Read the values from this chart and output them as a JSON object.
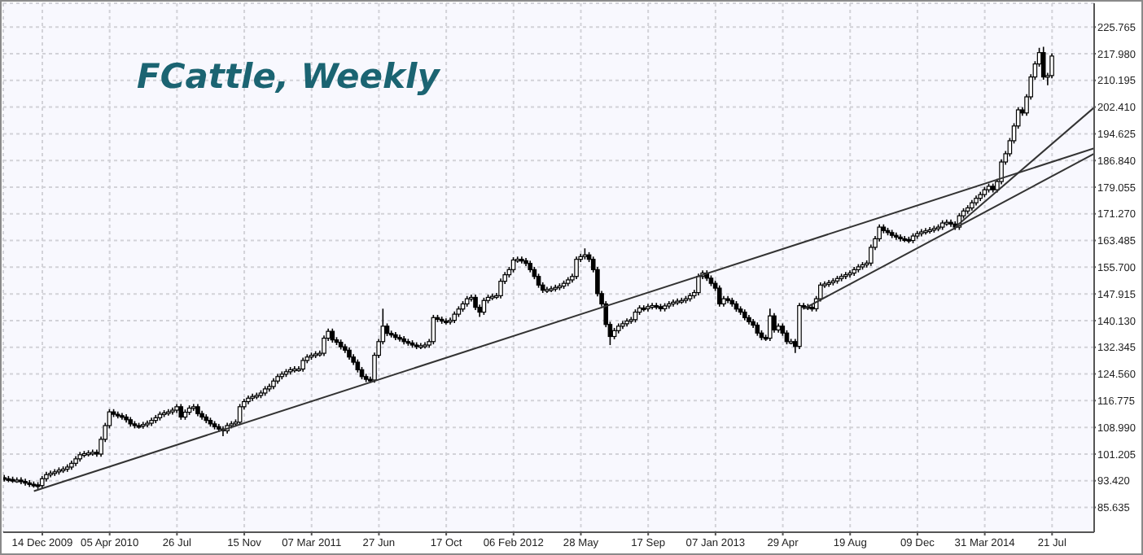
{
  "chart_data": {
    "type": "candlestick",
    "title": "FCattle, Weekly",
    "color": "#000000",
    "grid": true,
    "x": [
      "2009-10-12",
      "2009-10-19",
      "2009-10-26",
      "2009-11-02",
      "2009-11-09",
      "2009-11-16",
      "2009-11-23",
      "2009-11-30",
      "2009-12-07",
      "2009-12-14",
      "2009-12-21",
      "2009-12-28",
      "2010-01-04",
      "2010-01-11",
      "2010-01-18",
      "2010-01-25",
      "2010-02-01",
      "2010-02-08",
      "2010-02-15",
      "2010-02-22",
      "2010-03-01",
      "2010-03-08",
      "2010-03-15",
      "2010-03-22",
      "2010-03-29",
      "2010-04-05",
      "2010-04-12",
      "2010-04-19",
      "2010-04-26",
      "2010-05-03",
      "2010-05-10",
      "2010-05-17",
      "2010-05-24",
      "2010-05-31",
      "2010-06-07",
      "2010-06-14",
      "2010-06-21",
      "2010-06-28",
      "2010-07-05",
      "2010-07-12",
      "2010-07-19",
      "2010-07-26",
      "2010-08-02",
      "2010-08-09",
      "2010-08-16",
      "2010-08-23",
      "2010-08-30",
      "2010-09-06",
      "2010-09-13",
      "2010-09-20",
      "2010-09-27",
      "2010-10-04",
      "2010-10-11",
      "2010-10-18",
      "2010-10-25",
      "2010-11-01",
      "2010-11-08",
      "2010-11-15",
      "2010-11-22",
      "2010-11-29",
      "2010-12-06",
      "2010-12-13",
      "2010-12-20",
      "2010-12-27",
      "2011-01-03",
      "2011-01-10",
      "2011-01-17",
      "2011-01-24",
      "2011-01-31",
      "2011-02-07",
      "2011-02-14",
      "2011-02-21",
      "2011-02-28",
      "2011-03-07",
      "2011-03-14",
      "2011-03-21",
      "2011-03-28",
      "2011-04-04",
      "2011-04-11",
      "2011-04-18",
      "2011-04-25",
      "2011-05-02",
      "2011-05-09",
      "2011-05-16",
      "2011-05-23",
      "2011-05-30",
      "2011-06-06",
      "2011-06-13",
      "2011-06-20",
      "2011-06-27",
      "2011-07-04",
      "2011-07-11",
      "2011-07-18",
      "2011-07-25",
      "2011-08-01",
      "2011-08-08",
      "2011-08-15",
      "2011-08-22",
      "2011-08-29",
      "2011-09-05",
      "2011-09-12",
      "2011-09-19",
      "2011-09-26",
      "2011-10-03",
      "2011-10-10",
      "2011-10-17",
      "2011-10-24",
      "2011-10-31",
      "2011-11-07",
      "2011-11-14",
      "2011-11-21",
      "2011-11-28",
      "2011-12-05",
      "2011-12-12",
      "2011-12-19",
      "2011-12-26",
      "2012-01-02",
      "2012-01-09",
      "2012-01-16",
      "2012-01-23",
      "2012-01-30",
      "2012-02-06",
      "2012-02-13",
      "2012-02-20",
      "2012-02-27",
      "2012-03-05",
      "2012-03-12",
      "2012-03-19",
      "2012-03-26",
      "2012-04-02",
      "2012-04-09",
      "2012-04-16",
      "2012-04-23",
      "2012-04-30",
      "2012-05-07",
      "2012-05-14",
      "2012-05-21",
      "2012-05-28",
      "2012-06-04",
      "2012-06-11",
      "2012-06-18",
      "2012-06-25",
      "2012-07-02",
      "2012-07-09",
      "2012-07-16",
      "2012-07-23",
      "2012-07-30",
      "2012-08-06",
      "2012-08-13",
      "2012-08-20",
      "2012-08-27",
      "2012-09-03",
      "2012-09-10",
      "2012-09-17",
      "2012-09-24",
      "2012-10-01",
      "2012-10-08",
      "2012-10-15",
      "2012-10-22",
      "2012-10-29",
      "2012-11-05",
      "2012-11-12",
      "2012-11-19",
      "2012-11-26",
      "2012-12-03",
      "2012-12-10",
      "2012-12-17",
      "2012-12-24",
      "2012-12-31",
      "2013-01-07",
      "2013-01-14",
      "2013-01-21",
      "2013-01-28",
      "2013-02-04",
      "2013-02-11",
      "2013-02-18",
      "2013-02-25",
      "2013-03-04",
      "2013-03-11",
      "2013-03-18",
      "2013-03-25",
      "2013-04-01",
      "2013-04-08",
      "2013-04-15",
      "2013-04-22",
      "2013-04-29",
      "2013-05-06",
      "2013-05-13",
      "2013-05-20",
      "2013-05-27",
      "2013-06-03",
      "2013-06-10",
      "2013-06-17",
      "2013-06-24",
      "2013-07-01",
      "2013-07-08",
      "2013-07-15",
      "2013-07-22",
      "2013-07-29",
      "2013-08-05",
      "2013-08-12",
      "2013-08-19",
      "2013-08-26",
      "2013-09-02",
      "2013-09-09",
      "2013-09-16",
      "2013-09-23",
      "2013-09-30",
      "2013-10-07",
      "2013-10-14",
      "2013-10-21",
      "2013-10-28",
      "2013-11-04",
      "2013-11-11",
      "2013-11-18",
      "2013-11-25",
      "2013-12-02",
      "2013-12-09",
      "2013-12-16",
      "2013-12-23",
      "2013-12-30",
      "2014-01-06",
      "2014-01-13",
      "2014-01-20",
      "2014-01-27",
      "2014-02-03",
      "2014-02-10",
      "2014-02-17",
      "2014-02-24",
      "2014-03-03",
      "2014-03-10",
      "2014-03-17",
      "2014-03-24",
      "2014-03-31",
      "2014-04-07",
      "2014-04-14",
      "2014-04-21",
      "2014-04-28",
      "2014-05-05",
      "2014-05-12",
      "2014-05-19",
      "2014-05-26",
      "2014-06-02",
      "2014-06-09",
      "2014-06-16",
      "2014-06-23",
      "2014-06-30",
      "2014-07-07",
      "2014-07-14",
      "2014-07-21"
    ],
    "ohlc": [
      [
        94.3,
        95.1,
        93.2,
        94.0
      ],
      [
        94.0,
        94.8,
        93.0,
        93.8
      ],
      [
        93.8,
        94.6,
        92.8,
        93.6
      ],
      [
        93.6,
        94.4,
        92.8,
        93.6
      ],
      [
        93.6,
        94.4,
        92.4,
        93.2
      ],
      [
        93.2,
        94.0,
        92.0,
        92.8
      ],
      [
        92.8,
        93.6,
        91.6,
        92.4
      ],
      [
        92.4,
        93.2,
        91.4,
        92.2
      ],
      [
        92.2,
        93.0,
        91.0,
        92.0
      ],
      [
        92.0,
        94.8,
        91.2,
        94.0
      ],
      [
        94.0,
        96.0,
        93.2,
        95.2
      ],
      [
        95.2,
        96.4,
        94.4,
        95.6
      ],
      [
        95.6,
        96.8,
        94.8,
        96.0
      ],
      [
        96.0,
        97.3,
        95.2,
        96.5
      ],
      [
        96.5,
        97.6,
        95.7,
        96.8
      ],
      [
        96.8,
        98.2,
        96.0,
        97.4
      ],
      [
        97.4,
        99.3,
        96.6,
        98.5
      ],
      [
        98.5,
        100.6,
        97.7,
        99.8
      ],
      [
        99.8,
        101.8,
        99.0,
        101.0
      ],
      [
        101.0,
        102.1,
        100.2,
        101.3
      ],
      [
        101.3,
        102.3,
        100.5,
        101.5
      ],
      [
        101.5,
        102.5,
        100.7,
        101.7
      ],
      [
        101.7,
        102.5,
        100.4,
        101.2
      ],
      [
        101.2,
        106.3,
        100.4,
        105.5
      ],
      [
        105.5,
        110.3,
        104.7,
        109.5
      ],
      [
        109.5,
        114.3,
        108.7,
        113.5
      ],
      [
        113.5,
        114.3,
        112.0,
        112.8
      ],
      [
        112.8,
        113.6,
        111.6,
        112.4
      ],
      [
        112.4,
        113.2,
        111.2,
        112.0
      ],
      [
        112.0,
        112.8,
        110.4,
        111.2
      ],
      [
        111.2,
        112.0,
        109.2,
        110.0
      ],
      [
        110.0,
        110.8,
        108.7,
        109.5
      ],
      [
        109.5,
        110.3,
        108.6,
        109.4
      ],
      [
        109.4,
        110.6,
        108.6,
        109.8
      ],
      [
        109.8,
        111.0,
        109.0,
        110.2
      ],
      [
        110.2,
        111.8,
        109.4,
        111.0
      ],
      [
        111.0,
        112.6,
        110.2,
        111.8
      ],
      [
        111.8,
        113.6,
        111.0,
        112.8
      ],
      [
        112.8,
        114.0,
        112.0,
        113.2
      ],
      [
        113.2,
        114.3,
        112.4,
        113.5
      ],
      [
        113.5,
        114.8,
        112.7,
        114.0
      ],
      [
        114.0,
        115.8,
        113.2,
        115.0
      ],
      [
        115.0,
        115.8,
        111.2,
        112.0
      ],
      [
        112.0,
        114.2,
        111.2,
        113.4
      ],
      [
        113.4,
        115.4,
        112.6,
        114.6
      ],
      [
        114.6,
        115.8,
        113.8,
        115.0
      ],
      [
        115.0,
        115.8,
        112.2,
        113.0
      ],
      [
        113.0,
        113.8,
        111.2,
        112.0
      ],
      [
        112.0,
        112.8,
        110.2,
        111.0
      ],
      [
        111.0,
        111.8,
        109.2,
        110.0
      ],
      [
        110.0,
        110.8,
        108.4,
        109.2
      ],
      [
        109.2,
        110.0,
        107.7,
        108.5
      ],
      [
        108.5,
        109.3,
        106.4,
        108.0
      ],
      [
        108.0,
        110.3,
        107.2,
        109.5
      ],
      [
        109.5,
        110.8,
        108.7,
        110.0
      ],
      [
        110.0,
        111.3,
        109.2,
        110.5
      ],
      [
        110.5,
        115.8,
        109.7,
        115.0
      ],
      [
        115.0,
        117.3,
        114.2,
        116.5
      ],
      [
        116.5,
        118.3,
        115.7,
        117.5
      ],
      [
        117.5,
        118.8,
        116.7,
        118.0
      ],
      [
        118.0,
        119.1,
        117.2,
        118.3
      ],
      [
        118.3,
        119.8,
        117.5,
        119.0
      ],
      [
        119.0,
        121.0,
        118.2,
        120.2
      ],
      [
        120.2,
        121.7,
        119.4,
        120.9
      ],
      [
        120.9,
        123.3,
        120.1,
        122.5
      ],
      [
        122.5,
        124.6,
        121.7,
        123.8
      ],
      [
        123.8,
        125.3,
        123.0,
        124.5
      ],
      [
        124.5,
        126.0,
        123.7,
        125.2
      ],
      [
        125.2,
        126.6,
        124.4,
        125.8
      ],
      [
        125.8,
        126.8,
        125.0,
        126.0
      ],
      [
        126.0,
        126.8,
        125.2,
        126.0
      ],
      [
        126.0,
        129.3,
        125.2,
        128.5
      ],
      [
        128.5,
        130.3,
        127.7,
        129.5
      ],
      [
        129.5,
        130.8,
        128.7,
        130.0
      ],
      [
        130.0,
        131.2,
        129.2,
        130.4
      ],
      [
        130.4,
        131.4,
        129.6,
        130.6
      ],
      [
        130.6,
        135.8,
        129.8,
        135.0
      ],
      [
        135.0,
        137.8,
        134.2,
        137.0
      ],
      [
        137.0,
        137.8,
        133.7,
        134.5
      ],
      [
        134.5,
        135.3,
        133.0,
        133.8
      ],
      [
        133.8,
        134.6,
        131.7,
        132.5
      ],
      [
        132.5,
        133.3,
        130.7,
        131.5
      ],
      [
        131.5,
        132.3,
        128.7,
        129.5
      ],
      [
        129.5,
        130.3,
        127.2,
        128.0
      ],
      [
        128.0,
        128.8,
        125.0,
        125.8
      ],
      [
        125.8,
        126.6,
        123.0,
        123.8
      ],
      [
        123.8,
        124.6,
        122.2,
        123.0
      ],
      [
        123.0,
        123.8,
        122.0,
        122.8
      ],
      [
        122.8,
        130.8,
        122.0,
        130.0
      ],
      [
        130.0,
        134.8,
        129.2,
        134.0
      ],
      [
        134.0,
        143.6,
        133.2,
        138.5
      ],
      [
        138.5,
        139.3,
        135.6,
        136.4
      ],
      [
        136.4,
        137.2,
        135.2,
        136.0
      ],
      [
        136.0,
        136.8,
        134.4,
        135.2
      ],
      [
        135.2,
        136.0,
        134.0,
        134.8
      ],
      [
        134.8,
        135.6,
        133.2,
        134.0
      ],
      [
        134.0,
        134.8,
        132.8,
        133.6
      ],
      [
        133.6,
        134.4,
        132.2,
        133.0
      ],
      [
        133.0,
        133.8,
        131.8,
        132.6
      ],
      [
        132.6,
        133.6,
        131.8,
        132.8
      ],
      [
        132.8,
        133.8,
        132.0,
        133.0
      ],
      [
        133.0,
        134.8,
        132.2,
        134.0
      ],
      [
        134.0,
        141.8,
        133.2,
        141.0
      ],
      [
        141.0,
        141.8,
        139.7,
        140.5
      ],
      [
        140.5,
        141.3,
        139.2,
        140.0
      ],
      [
        140.0,
        140.8,
        139.0,
        139.8
      ],
      [
        139.8,
        141.0,
        139.0,
        140.2
      ],
      [
        140.2,
        142.8,
        139.4,
        142.0
      ],
      [
        142.0,
        144.3,
        141.2,
        143.5
      ],
      [
        143.5,
        145.8,
        142.7,
        145.0
      ],
      [
        145.0,
        147.3,
        144.2,
        146.5
      ],
      [
        146.5,
        147.7,
        145.7,
        146.9
      ],
      [
        146.9,
        147.7,
        143.2,
        144.0
      ],
      [
        144.0,
        144.8,
        141.2,
        142.6
      ],
      [
        142.6,
        146.8,
        141.8,
        146.0
      ],
      [
        146.0,
        147.7,
        145.2,
        146.9
      ],
      [
        146.9,
        148.0,
        146.1,
        147.2
      ],
      [
        147.2,
        148.2,
        146.4,
        147.4
      ],
      [
        147.4,
        152.4,
        146.6,
        151.6
      ],
      [
        151.6,
        154.3,
        150.8,
        153.5
      ],
      [
        153.5,
        155.8,
        152.7,
        155.0
      ],
      [
        155.0,
        158.6,
        154.2,
        157.8
      ],
      [
        157.8,
        158.8,
        157.0,
        158.0
      ],
      [
        158.0,
        158.8,
        156.8,
        157.6
      ],
      [
        157.6,
        158.4,
        156.0,
        156.8
      ],
      [
        156.8,
        157.6,
        154.2,
        155.0
      ],
      [
        155.0,
        155.8,
        152.2,
        153.0
      ],
      [
        153.0,
        153.8,
        149.7,
        150.5
      ],
      [
        150.5,
        151.3,
        148.2,
        149.0
      ],
      [
        149.0,
        150.0,
        148.2,
        149.2
      ],
      [
        149.2,
        150.2,
        148.4,
        149.4
      ],
      [
        149.4,
        150.6,
        148.6,
        149.8
      ],
      [
        149.8,
        151.0,
        149.0,
        150.2
      ],
      [
        150.2,
        151.8,
        149.4,
        151.0
      ],
      [
        151.0,
        152.8,
        150.2,
        152.0
      ],
      [
        152.0,
        153.8,
        151.2,
        153.0
      ],
      [
        153.0,
        158.8,
        152.2,
        158.0
      ],
      [
        158.0,
        159.6,
        157.2,
        158.8
      ],
      [
        158.8,
        161.2,
        158.0,
        159.3
      ],
      [
        159.3,
        160.1,
        157.2,
        158.0
      ],
      [
        158.0,
        158.8,
        154.2,
        155.0
      ],
      [
        155.0,
        155.8,
        147.2,
        148.0
      ],
      [
        148.0,
        148.8,
        144.2,
        145.0
      ],
      [
        145.0,
        145.8,
        138.2,
        139.0
      ],
      [
        139.0,
        139.8,
        133.0,
        135.5
      ],
      [
        135.5,
        138.0,
        134.7,
        137.2
      ],
      [
        137.2,
        139.3,
        136.4,
        138.5
      ],
      [
        138.5,
        140.0,
        137.7,
        139.2
      ],
      [
        139.2,
        140.8,
        138.4,
        140.0
      ],
      [
        140.0,
        141.2,
        139.2,
        140.4
      ],
      [
        140.4,
        143.4,
        139.6,
        142.6
      ],
      [
        142.6,
        144.6,
        141.8,
        143.8
      ],
      [
        143.8,
        144.6,
        142.8,
        143.6
      ],
      [
        143.6,
        145.0,
        142.8,
        144.2
      ],
      [
        144.2,
        145.3,
        143.4,
        144.5
      ],
      [
        144.5,
        145.3,
        143.4,
        144.2
      ],
      [
        144.2,
        145.0,
        142.8,
        143.6
      ],
      [
        143.6,
        145.2,
        142.8,
        144.4
      ],
      [
        144.4,
        145.8,
        143.6,
        145.0
      ],
      [
        145.0,
        146.3,
        144.2,
        145.5
      ],
      [
        145.5,
        146.6,
        144.7,
        145.8
      ],
      [
        145.8,
        146.8,
        145.0,
        146.0
      ],
      [
        146.0,
        147.3,
        145.2,
        146.5
      ],
      [
        146.5,
        148.2,
        145.7,
        147.4
      ],
      [
        147.4,
        149.1,
        146.6,
        148.3
      ],
      [
        148.3,
        153.8,
        147.5,
        153.0
      ],
      [
        153.0,
        154.8,
        152.2,
        154.0
      ],
      [
        154.0,
        154.8,
        151.7,
        152.5
      ],
      [
        152.5,
        153.3,
        150.2,
        151.0
      ],
      [
        151.0,
        151.8,
        148.8,
        149.6
      ],
      [
        149.6,
        150.4,
        144.2,
        145.0
      ],
      [
        145.0,
        147.3,
        144.2,
        146.5
      ],
      [
        146.5,
        147.3,
        145.2,
        146.0
      ],
      [
        146.0,
        146.8,
        144.2,
        145.0
      ],
      [
        145.0,
        145.8,
        142.7,
        143.5
      ],
      [
        143.5,
        144.3,
        141.8,
        142.6
      ],
      [
        142.6,
        143.4,
        140.2,
        141.0
      ],
      [
        141.0,
        141.8,
        139.0,
        139.8
      ],
      [
        139.8,
        140.6,
        138.0,
        138.8
      ],
      [
        138.8,
        139.6,
        135.7,
        136.5
      ],
      [
        136.5,
        137.3,
        134.4,
        135.2
      ],
      [
        135.2,
        136.0,
        134.2,
        135.0
      ],
      [
        135.0,
        143.6,
        134.2,
        141.5
      ],
      [
        141.5,
        142.3,
        136.6,
        137.4
      ],
      [
        137.4,
        139.3,
        136.6,
        138.5
      ],
      [
        138.5,
        139.3,
        135.7,
        136.5
      ],
      [
        136.5,
        137.3,
        133.2,
        134.0
      ],
      [
        134.0,
        134.8,
        133.2,
        134.0
      ],
      [
        134.0,
        134.8,
        130.7,
        132.6
      ],
      [
        132.6,
        145.3,
        131.8,
        144.5
      ],
      [
        144.5,
        145.3,
        143.4,
        144.2
      ],
      [
        144.2,
        145.0,
        143.2,
        144.0
      ],
      [
        144.0,
        144.8,
        142.8,
        143.6
      ],
      [
        143.6,
        147.3,
        142.8,
        146.5
      ],
      [
        146.5,
        151.3,
        145.7,
        150.5
      ],
      [
        150.5,
        151.6,
        149.7,
        150.8
      ],
      [
        150.8,
        152.0,
        150.0,
        151.2
      ],
      [
        151.2,
        152.5,
        150.4,
        151.7
      ],
      [
        151.7,
        153.2,
        150.9,
        152.4
      ],
      [
        152.4,
        153.8,
        151.6,
        153.0
      ],
      [
        153.0,
        154.3,
        152.2,
        153.5
      ],
      [
        153.5,
        154.8,
        152.7,
        154.0
      ],
      [
        154.0,
        155.8,
        153.2,
        155.0
      ],
      [
        155.0,
        156.6,
        154.2,
        155.8
      ],
      [
        155.8,
        157.2,
        155.0,
        156.4
      ],
      [
        156.4,
        157.7,
        155.6,
        156.9
      ],
      [
        156.9,
        162.3,
        156.1,
        161.5
      ],
      [
        161.5,
        164.8,
        160.7,
        164.0
      ],
      [
        164.0,
        168.2,
        163.2,
        167.4
      ],
      [
        167.4,
        168.2,
        165.6,
        166.4
      ],
      [
        166.4,
        167.2,
        165.0,
        165.8
      ],
      [
        165.8,
        166.6,
        164.2,
        165.0
      ],
      [
        165.0,
        165.8,
        163.7,
        164.5
      ],
      [
        164.5,
        165.3,
        163.2,
        164.0
      ],
      [
        164.0,
        164.8,
        163.0,
        163.8
      ],
      [
        163.8,
        164.6,
        162.7,
        163.5
      ],
      [
        163.5,
        165.6,
        162.7,
        164.8
      ],
      [
        164.8,
        166.3,
        164.0,
        165.5
      ],
      [
        165.5,
        166.8,
        164.7,
        166.0
      ],
      [
        166.0,
        167.1,
        165.2,
        166.3
      ],
      [
        166.3,
        167.4,
        165.5,
        166.6
      ],
      [
        166.6,
        167.8,
        165.8,
        167.0
      ],
      [
        167.0,
        168.2,
        166.2,
        167.4
      ],
      [
        167.4,
        169.4,
        166.6,
        168.6
      ],
      [
        168.6,
        169.6,
        167.8,
        168.8
      ],
      [
        168.8,
        169.6,
        167.5,
        168.3
      ],
      [
        168.3,
        169.1,
        166.6,
        167.4
      ],
      [
        167.4,
        171.5,
        166.6,
        170.7
      ],
      [
        170.7,
        172.9,
        169.9,
        172.1
      ],
      [
        172.1,
        173.8,
        171.3,
        173.0
      ],
      [
        173.0,
        175.3,
        172.2,
        174.5
      ],
      [
        174.5,
        176.6,
        173.7,
        175.8
      ],
      [
        175.8,
        177.7,
        175.0,
        176.9
      ],
      [
        176.9,
        179.1,
        176.1,
        178.3
      ],
      [
        178.3,
        180.1,
        177.5,
        179.3
      ],
      [
        179.3,
        180.1,
        177.5,
        178.3
      ],
      [
        178.3,
        181.5,
        177.5,
        180.7
      ],
      [
        180.7,
        187.2,
        179.9,
        186.4
      ],
      [
        186.4,
        189.6,
        185.6,
        188.8
      ],
      [
        188.8,
        193.4,
        188.0,
        192.6
      ],
      [
        192.6,
        197.7,
        191.8,
        196.9
      ],
      [
        196.9,
        202.4,
        196.1,
        201.6
      ],
      [
        201.6,
        202.4,
        199.9,
        200.7
      ],
      [
        200.7,
        206.2,
        199.9,
        205.4
      ],
      [
        205.4,
        212.0,
        204.6,
        211.2
      ],
      [
        211.2,
        215.8,
        210.4,
        215.0
      ],
      [
        215.0,
        219.7,
        214.2,
        218.3
      ],
      [
        218.3,
        220.0,
        210.4,
        211.2
      ],
      [
        211.2,
        212.4,
        208.8,
        211.6
      ],
      [
        211.6,
        218.1,
        210.8,
        217.3
      ]
    ],
    "series": [
      {
        "type": "line",
        "color": "#333333",
        "x": [
          "2009-11-30",
          "2014-09-29"
        ],
        "values": [
          90.4,
          190.4
        ]
      },
      {
        "type": "line",
        "color": "#333333",
        "x": [
          "2013-06-03",
          "2014-09-29"
        ],
        "values": [
          143.6,
          188.8
        ]
      },
      {
        "type": "line",
        "color": "#333333",
        "x": [
          "2014-02-10",
          "2014-09-29"
        ],
        "values": [
          167.4,
          202.3
        ]
      }
    ],
    "xlim": [
      "2009-10-10",
      "2014-09-29"
    ],
    "xticks": [
      {
        "value": "2009-12-14",
        "label": "14 Dec 2009"
      },
      {
        "value": "2010-04-05",
        "label": "05 Apr 2010"
      },
      {
        "value": "2010-07-26",
        "label": "26 Jul"
      },
      {
        "value": "2010-11-15",
        "label": "15 Nov"
      },
      {
        "value": "2011-03-07",
        "label": "07 Mar 2011"
      },
      {
        "value": "2011-06-27",
        "label": "27 Jun"
      },
      {
        "value": "2011-10-17",
        "label": "17 Oct"
      },
      {
        "value": "2012-02-06",
        "label": "06 Feb 2012"
      },
      {
        "value": "2012-05-28",
        "label": "28 May"
      },
      {
        "value": "2012-09-17",
        "label": "17 Sep"
      },
      {
        "value": "2013-01-07",
        "label": "07 Jan 2013"
      },
      {
        "value": "2013-04-29",
        "label": "29 Apr"
      },
      {
        "value": "2013-08-19",
        "label": "19 Aug"
      },
      {
        "value": "2013-12-09",
        "label": "09 Dec"
      },
      {
        "value": "2014-03-31",
        "label": "31 Mar 2014"
      },
      {
        "value": "2014-07-21",
        "label": "21 Jul"
      }
    ],
    "ylim": [
      78.4,
      232.7
    ],
    "yticks": [
      85.635,
      {
        "value": 93.42,
        "label": "93.420"
      },
      101.205,
      {
        "value": 108.99,
        "label": "108.990"
      },
      116.775,
      {
        "value": 124.56,
        "label": "124.560"
      },
      132.345,
      {
        "value": 140.13,
        "label": "140.130"
      },
      147.915,
      {
        "value": 155.7,
        "label": "155.700"
      },
      163.485,
      {
        "value": 171.27,
        "label": "171.270"
      },
      179.055,
      {
        "value": 186.84,
        "label": "186.840"
      },
      194.625,
      {
        "value": 202.41,
        "label": "202.410"
      },
      210.195,
      {
        "value": 217.98,
        "label": "217.980"
      },
      225.765
    ]
  }
}
